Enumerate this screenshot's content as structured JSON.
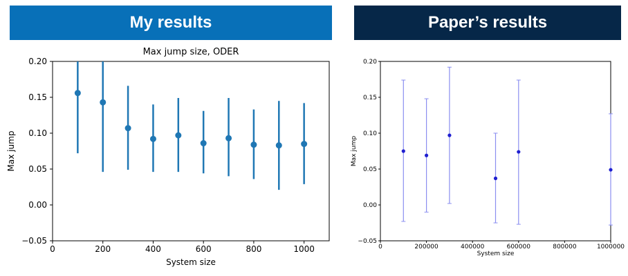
{
  "banners": {
    "left": "My results",
    "right": "Paper’s results",
    "left_color": "#0870b8",
    "right_color": "#062748"
  },
  "chart_data": [
    {
      "type": "scatter",
      "title": "Max jump size, ODER",
      "xlabel": "System size",
      "ylabel": "Max jump",
      "xlim": [
        0,
        1100
      ],
      "ylim": [
        -0.05,
        0.2
      ],
      "xticks": [
        0,
        200,
        400,
        600,
        800,
        1000
      ],
      "xtick_labels": [
        "0",
        "200",
        "400",
        "600",
        "800",
        "1000"
      ],
      "yticks": [
        -0.05,
        0.0,
        0.05,
        0.1,
        0.15,
        0.2
      ],
      "ytick_labels": [
        "−0.05",
        "0.00",
        "0.05",
        "0.10",
        "0.15",
        "0.20"
      ],
      "color": "#1f77b4",
      "grid": false,
      "series": [
        {
          "x": [
            100,
            200,
            300,
            400,
            500,
            600,
            700,
            800,
            900,
            1000
          ],
          "y": [
            0.156,
            0.143,
            0.107,
            0.092,
            0.097,
            0.086,
            0.093,
            0.084,
            0.083,
            0.085
          ],
          "err_low": [
            0.072,
            0.046,
            0.049,
            0.046,
            0.046,
            0.044,
            0.04,
            0.036,
            0.021,
            0.029
          ],
          "err_high": [
            0.2,
            0.2,
            0.166,
            0.14,
            0.149,
            0.131,
            0.149,
            0.133,
            0.145,
            0.142
          ]
        }
      ]
    },
    {
      "type": "scatter",
      "title": "",
      "xlabel": "System size",
      "ylabel": "Max jump",
      "xlim": [
        0,
        1000000
      ],
      "ylim": [
        -0.05,
        0.2
      ],
      "xticks": [
        0,
        200000,
        400000,
        600000,
        800000,
        1000000
      ],
      "xtick_labels": [
        "0",
        "200000",
        "400000",
        "600000",
        "800000",
        "1000000"
      ],
      "yticks": [
        -0.05,
        0.0,
        0.05,
        0.1,
        0.15,
        0.2
      ],
      "ytick_labels": [
        "−0.05",
        "0.00",
        "0.05",
        "0.10",
        "0.15",
        "0.20"
      ],
      "color": "#1f1fd0",
      "error_color": "#8a8ef0",
      "grid": false,
      "series": [
        {
          "x": [
            100000,
            200000,
            300000,
            500000,
            600000,
            1000000
          ],
          "y": [
            0.075,
            0.069,
            0.097,
            0.037,
            0.074,
            0.049
          ],
          "err_low": [
            -0.023,
            -0.01,
            0.002,
            -0.025,
            -0.027,
            -0.028
          ],
          "err_high": [
            0.174,
            0.148,
            0.192,
            0.1,
            0.174,
            0.127
          ]
        }
      ]
    }
  ]
}
